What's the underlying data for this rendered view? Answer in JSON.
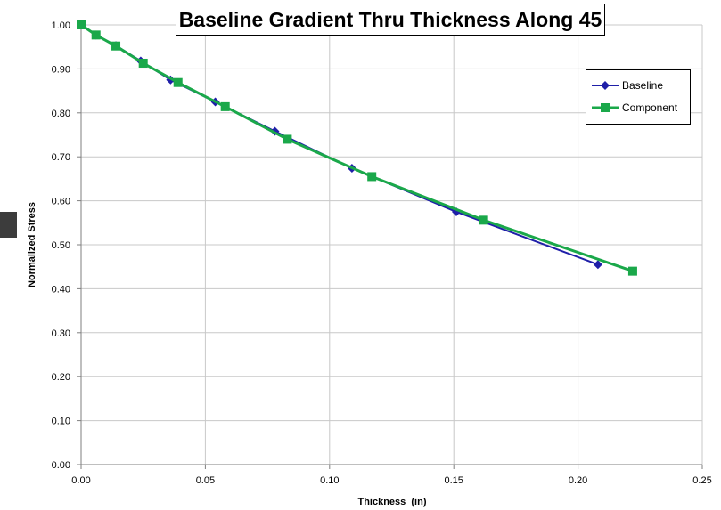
{
  "chart_data": {
    "type": "line",
    "title": "Baseline Gradient Thru Thickness Along 45",
    "xlabel": "Thickness  (in)",
    "ylabel": "Normalized Stress",
    "xlim": [
      0,
      0.25
    ],
    "ylim": [
      0,
      1.0
    ],
    "xticks": [
      "0.00",
      "0.05",
      "0.10",
      "0.15",
      "0.20",
      "0.25"
    ],
    "yticks": [
      "0.00",
      "0.10",
      "0.20",
      "0.30",
      "0.40",
      "0.50",
      "0.60",
      "0.70",
      "0.80",
      "0.90",
      "1.00"
    ],
    "grid": true,
    "legend_position": "top-right",
    "series": [
      {
        "name": "Baseline",
        "color": "#1f1fa8",
        "marker": "diamond",
        "x": [
          0.0,
          0.006,
          0.014,
          0.024,
          0.036,
          0.054,
          0.078,
          0.109,
          0.151,
          0.208
        ],
        "y": [
          1.0,
          0.977,
          0.953,
          0.918,
          0.875,
          0.825,
          0.758,
          0.674,
          0.575,
          0.455
        ]
      },
      {
        "name": "Component",
        "color": "#1aa84a",
        "marker": "square",
        "x": [
          0.0,
          0.006,
          0.014,
          0.025,
          0.039,
          0.058,
          0.083,
          0.117,
          0.162,
          0.222
        ],
        "y": [
          1.0,
          0.977,
          0.952,
          0.913,
          0.869,
          0.814,
          0.74,
          0.655,
          0.556,
          0.44
        ]
      }
    ]
  }
}
